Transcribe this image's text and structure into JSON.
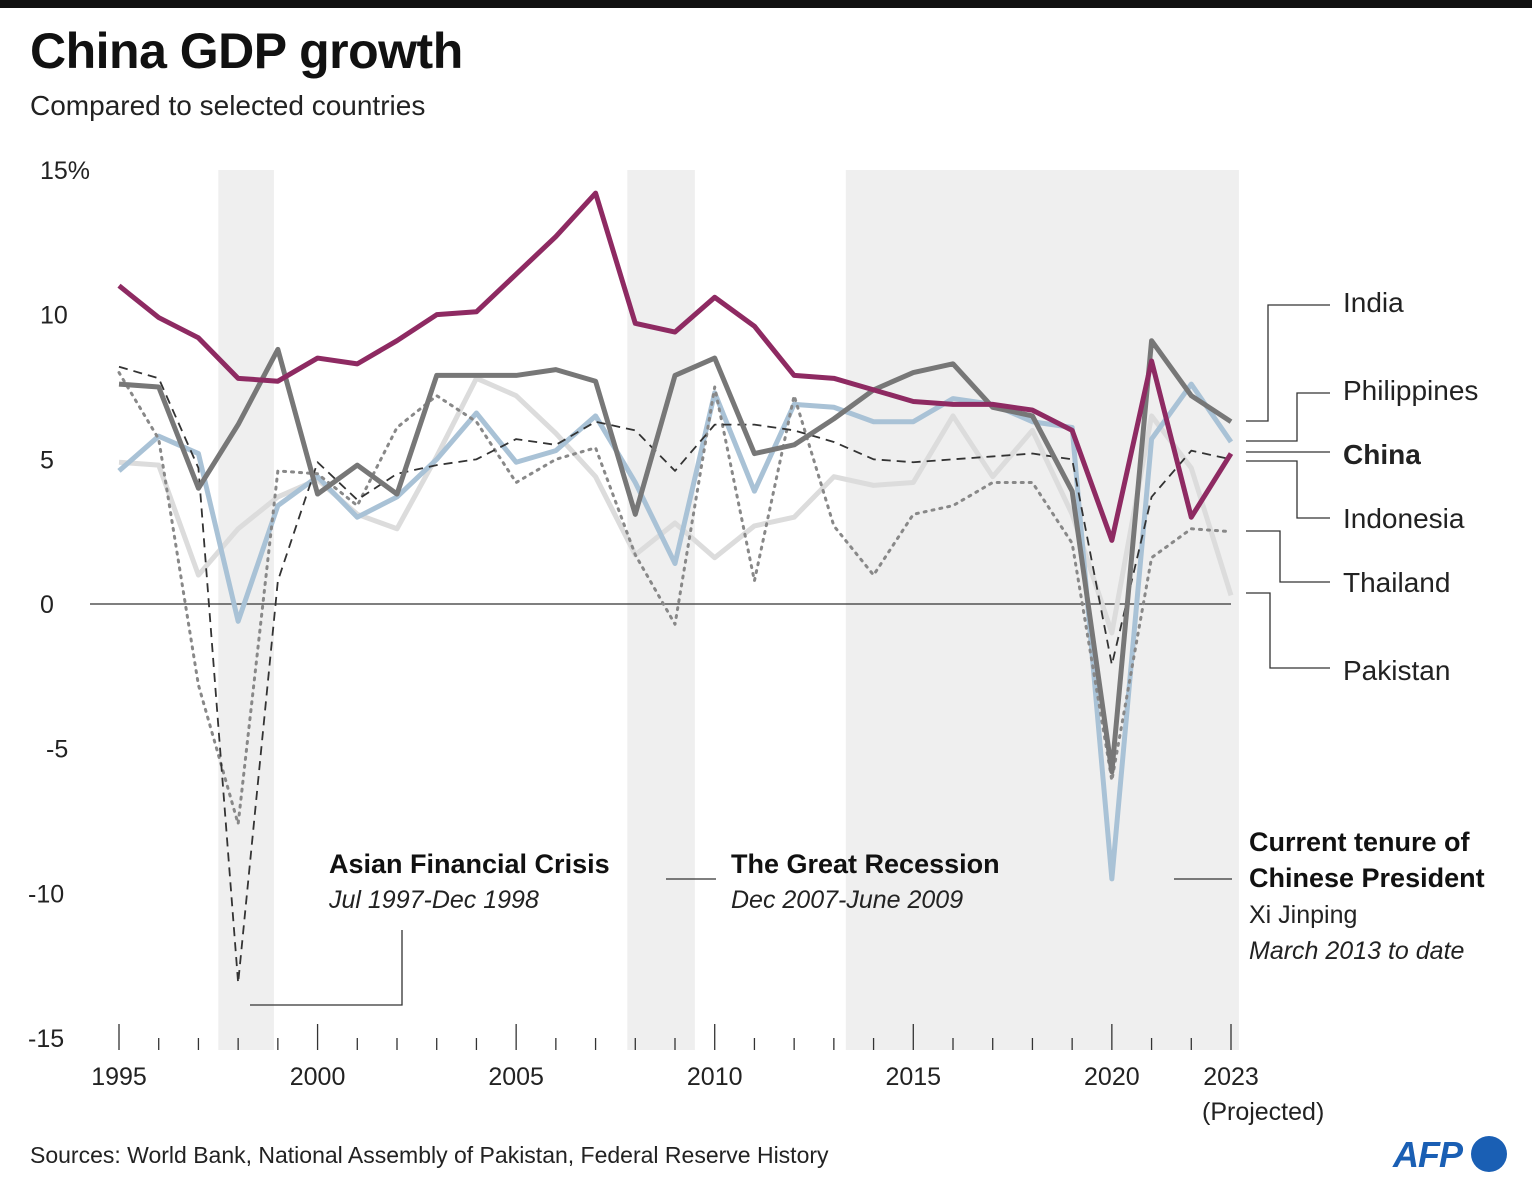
{
  "title": "China GDP growth",
  "subtitle": "Compared to selected countries",
  "sources": "Sources: World Bank, National Assembly of Pakistan, Federal Reserve History",
  "logo": "AFP",
  "colors": {
    "china": "#8e2a62",
    "india": "#777777",
    "philippines": "#a9c2d6",
    "indonesia": "#444444",
    "thailand": "#888888",
    "pakistan": "#dcdcdc",
    "shade": "#efefef",
    "logo": "#1a5fb4"
  },
  "annotations": {
    "asian": {
      "title": "Asian Financial Crisis",
      "sub": "Jul 1997-Dec 1998"
    },
    "recession": {
      "title": "The Great Recession",
      "sub": "Dec 2007-June 2009"
    },
    "tenure": {
      "title1": "Current tenure of",
      "title2": "Chinese President",
      "name": "Xi Jinping",
      "sub": "March 2013 to date"
    }
  },
  "chart_data": {
    "type": "line",
    "title": "China GDP growth",
    "subtitle": "Compared to selected countries",
    "xlabel": "",
    "ylabel": "",
    "x": [
      1995,
      1996,
      1997,
      1998,
      1999,
      2000,
      2001,
      2002,
      2003,
      2004,
      2005,
      2006,
      2007,
      2008,
      2009,
      2010,
      2011,
      2012,
      2013,
      2014,
      2015,
      2016,
      2017,
      2018,
      2019,
      2020,
      2021,
      2022,
      2023
    ],
    "ylim": [
      -15,
      15
    ],
    "yticks": [
      15,
      10,
      5,
      0,
      -5,
      -10,
      -15
    ],
    "ytick_labels": [
      "15%",
      "10",
      "5",
      "0",
      "-5",
      "-10",
      "-15"
    ],
    "xticks_labeled": [
      1995,
      2000,
      2005,
      2010,
      2015,
      2020,
      2023
    ],
    "xtick_labels": [
      "1995",
      "2000",
      "2005",
      "2010",
      "2015",
      "2020",
      "2023"
    ],
    "x_note": "(Projected)",
    "shaded_periods": [
      {
        "name": "Asian Financial Crisis",
        "start": 1997.5,
        "end": 1998.9
      },
      {
        "name": "The Great Recession",
        "start": 2007.8,
        "end": 2009.5
      },
      {
        "name": "Current tenure of Chinese President",
        "start": 2013.3,
        "end": 2023.2
      }
    ],
    "series": [
      {
        "name": "Pakistan",
        "style": "thick-light",
        "values": [
          4.9,
          4.8,
          1.0,
          2.6,
          3.7,
          4.3,
          3.1,
          2.6,
          5.1,
          7.8,
          7.2,
          5.9,
          4.4,
          1.7,
          2.8,
          1.6,
          2.7,
          3.0,
          4.4,
          4.1,
          4.2,
          6.5,
          4.4,
          6.0,
          3.1,
          -1.0,
          6.5,
          4.7,
          0.3
        ]
      },
      {
        "name": "Philippines",
        "style": "thick-blue",
        "values": [
          4.6,
          5.8,
          5.2,
          -0.6,
          3.4,
          4.4,
          3.0,
          3.7,
          5.0,
          6.6,
          4.9,
          5.3,
          6.5,
          4.2,
          1.4,
          7.3,
          3.9,
          6.9,
          6.8,
          6.3,
          6.3,
          7.1,
          6.9,
          6.3,
          6.1,
          -9.5,
          5.7,
          7.6,
          5.6
        ]
      },
      {
        "name": "Thailand",
        "style": "dotted",
        "values": [
          8.0,
          5.7,
          -2.8,
          -7.6,
          4.6,
          4.5,
          3.4,
          6.1,
          7.2,
          6.3,
          4.2,
          5.0,
          5.4,
          1.7,
          -0.7,
          7.5,
          0.8,
          7.2,
          2.7,
          1.0,
          3.1,
          3.4,
          4.2,
          4.2,
          2.1,
          -6.1,
          1.6,
          2.6,
          2.5
        ]
      },
      {
        "name": "Indonesia",
        "style": "dashed",
        "values": [
          8.2,
          7.8,
          4.7,
          -13.1,
          0.8,
          4.9,
          3.6,
          4.5,
          4.8,
          5.0,
          5.7,
          5.5,
          6.3,
          6.0,
          4.6,
          6.2,
          6.2,
          6.0,
          5.6,
          5.0,
          4.9,
          5.0,
          5.1,
          5.2,
          5.0,
          -2.1,
          3.7,
          5.3,
          5.0
        ]
      },
      {
        "name": "India",
        "style": "thick-dark",
        "values": [
          7.6,
          7.5,
          4.0,
          6.2,
          8.8,
          3.8,
          4.8,
          3.8,
          7.9,
          7.9,
          7.9,
          8.1,
          7.7,
          3.1,
          7.9,
          8.5,
          5.2,
          5.5,
          6.4,
          7.4,
          8.0,
          8.3,
          6.8,
          6.5,
          3.9,
          -5.8,
          9.1,
          7.2,
          6.3
        ]
      },
      {
        "name": "China",
        "style": "thick-china",
        "values": [
          11.0,
          9.9,
          9.2,
          7.8,
          7.7,
          8.5,
          8.3,
          9.1,
          10.0,
          10.1,
          11.4,
          12.7,
          14.2,
          9.7,
          9.4,
          10.6,
          9.6,
          7.9,
          7.8,
          7.4,
          7.0,
          6.9,
          6.9,
          6.7,
          6.0,
          2.2,
          8.4,
          3.0,
          5.2
        ]
      }
    ],
    "legend": [
      {
        "label": "India",
        "order": 1
      },
      {
        "label": "Philippines",
        "order": 2
      },
      {
        "label": "China",
        "order": 3
      },
      {
        "label": "Indonesia",
        "order": 4
      },
      {
        "label": "Thailand",
        "order": 5
      },
      {
        "label": "Pakistan",
        "order": 6
      }
    ]
  }
}
